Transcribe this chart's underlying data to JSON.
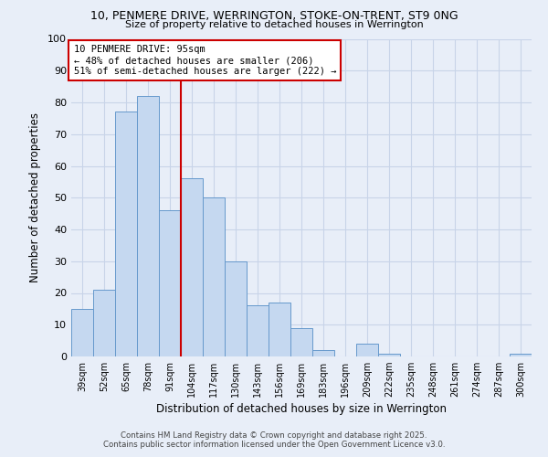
{
  "title1": "10, PENMERE DRIVE, WERRINGTON, STOKE-ON-TRENT, ST9 0NG",
  "title2": "Size of property relative to detached houses in Werrington",
  "xlabel": "Distribution of detached houses by size in Werrington",
  "ylabel": "Number of detached properties",
  "categories": [
    "39sqm",
    "52sqm",
    "65sqm",
    "78sqm",
    "91sqm",
    "104sqm",
    "117sqm",
    "130sqm",
    "143sqm",
    "156sqm",
    "169sqm",
    "183sqm",
    "196sqm",
    "209sqm",
    "222sqm",
    "235sqm",
    "248sqm",
    "261sqm",
    "274sqm",
    "287sqm",
    "300sqm"
  ],
  "values": [
    15,
    21,
    77,
    82,
    46,
    56,
    50,
    30,
    16,
    17,
    9,
    2,
    0,
    4,
    1,
    0,
    0,
    0,
    0,
    0,
    1
  ],
  "bar_color": "#c5d8f0",
  "bar_edge_color": "#6699cc",
  "vline_x": 4.5,
  "vline_color": "#cc0000",
  "annotation_text": "10 PENMERE DRIVE: 95sqm\n← 48% of detached houses are smaller (206)\n51% of semi-detached houses are larger (222) →",
  "annotation_box_color": "#ffffff",
  "annotation_box_edge": "#cc0000",
  "ylim": [
    0,
    100
  ],
  "yticks": [
    0,
    10,
    20,
    30,
    40,
    50,
    60,
    70,
    80,
    90,
    100
  ],
  "grid_color": "#c8d4e8",
  "background_color": "#e8eef8",
  "footnote1": "Contains HM Land Registry data © Crown copyright and database right 2025.",
  "footnote2": "Contains public sector information licensed under the Open Government Licence v3.0."
}
